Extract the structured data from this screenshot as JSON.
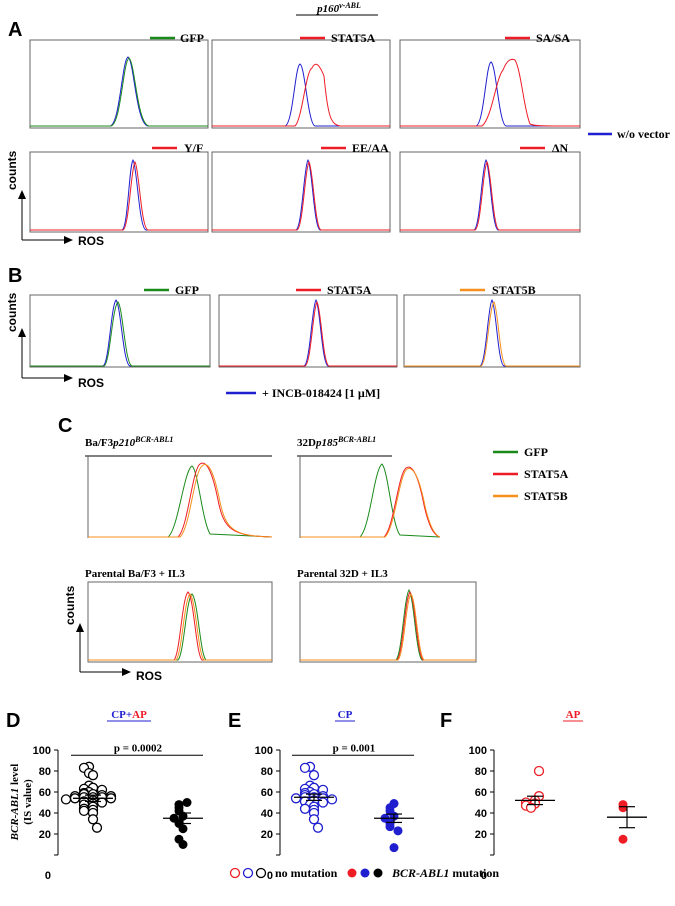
{
  "figure_title": "p160v-ABL",
  "figure_title_main": "p160",
  "figure_title_sup": "v-ABL",
  "panel_labels": {
    "A": "A",
    "B": "B",
    "C": "C",
    "D": "D",
    "E": "E",
    "F": "F"
  },
  "colors": {
    "green": "#1a8a1a",
    "red": "#ee1c25",
    "blue": "#1f1fd0",
    "orange": "#f5901e",
    "cp_blue": "#1f1fd0",
    "ap_red": "#ee1c25",
    "black": "#000000"
  },
  "axis_labels": {
    "counts": "counts",
    "ros": "ROS"
  },
  "panel_a": {
    "legends": [
      "GFP",
      "STAT5A",
      "SA/SA",
      "Y/F",
      "EE/AA",
      "ΔN"
    ],
    "side_legend": "w/o vector"
  },
  "panel_b": {
    "legends": [
      "GFP",
      "STAT5A",
      "STAT5B"
    ],
    "bottom_legend": "+ INCB-018424 [1 µM]"
  },
  "panel_c": {
    "titles": [
      {
        "main": "Ba/F3",
        "italic": "p210",
        "sup": "BCR-ABL1"
      },
      {
        "main": "32D",
        "italic": "p185",
        "sup": "BCR-ABL1"
      },
      {
        "main": "Parental Ba/F3 + IL3",
        "italic": "",
        "sup": ""
      },
      {
        "main": "Parental 32D + IL3",
        "italic": "",
        "sup": ""
      }
    ],
    "legend": [
      "GFP",
      "STAT5A",
      "STAT5B"
    ]
  },
  "chart_data": [
    {
      "type": "scatter",
      "panel": "D",
      "title": "CP+AP",
      "title_cp": "CP",
      "title_plus": "+",
      "title_ap": "AP",
      "ylabel": "BCR-ABL1 level (IS value)",
      "ylabel_italic": "BCR-ABL1",
      "ylabel_rest": " level",
      "ylabel_line2": "(IS value)",
      "ylim": [
        0,
        100
      ],
      "yticks": [
        0,
        20,
        40,
        60,
        80,
        100
      ],
      "pvalue": "p = 0.0002",
      "groups": [
        {
          "name": "no mutation",
          "mean": 54,
          "sem_low": 51,
          "sem_high": 57,
          "values": [
            84,
            83,
            78,
            76,
            66,
            64,
            63,
            62,
            60,
            59,
            58,
            58,
            57,
            56,
            56,
            55,
            55,
            55,
            54,
            54,
            53,
            52,
            51,
            50,
            49,
            48,
            46,
            44,
            43,
            42,
            40,
            34,
            26
          ]
        },
        {
          "name": "BCR-ABL1 mutation",
          "mean": 35,
          "sem_low": 30,
          "sem_high": 40,
          "values": [
            50,
            48,
            45,
            42,
            37,
            35,
            30,
            25,
            15,
            10
          ]
        }
      ]
    },
    {
      "type": "scatter",
      "panel": "E",
      "title": "CP",
      "ylim": [
        0,
        100
      ],
      "yticks": [
        0,
        20,
        40,
        60,
        80,
        100
      ],
      "pvalue": "p = 0.001",
      "groups": [
        {
          "name": "no mutation",
          "mean": 55,
          "sem_low": 52,
          "sem_high": 58,
          "values": [
            84,
            83,
            76,
            66,
            64,
            63,
            62,
            60,
            59,
            58,
            57,
            56,
            55,
            55,
            54,
            54,
            53,
            52,
            51,
            50,
            48,
            46,
            44,
            43,
            40,
            34,
            26
          ]
        },
        {
          "name": "BCR-ABL1 mutation",
          "mean": 35,
          "sem_low": 31,
          "sem_high": 39,
          "values": [
            49,
            45,
            42,
            37,
            35,
            30,
            27,
            23,
            7
          ]
        }
      ]
    },
    {
      "type": "scatter",
      "panel": "F",
      "title": "AP",
      "ylim": [
        0,
        100
      ],
      "yticks": [
        0,
        20,
        40,
        60,
        80,
        100
      ],
      "groups": [
        {
          "name": "no mutation",
          "mean": 52,
          "sem_low": 48,
          "sem_high": 56,
          "values": [
            80,
            56,
            52,
            50,
            49,
            47,
            45
          ]
        },
        {
          "name": "BCR-ABL1 mutation",
          "mean": 36,
          "sem_low": 26,
          "sem_high": 46,
          "values": [
            48,
            45,
            15
          ]
        }
      ]
    }
  ],
  "bottom_legend": {
    "no_mutation": "no mutation",
    "mutation_italic": "BCR-ABL1",
    "mutation_rest": " mutation"
  }
}
